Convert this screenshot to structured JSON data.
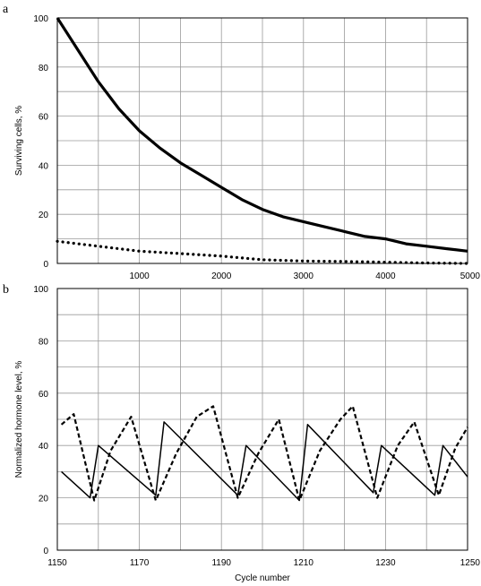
{
  "panel_a_label": "a",
  "panel_b_label": "b",
  "chart_data": [
    {
      "type": "line",
      "xlabel": "",
      "ylabel": "Surviving cells, %",
      "xlim": [
        0,
        5000
      ],
      "ylim": [
        0,
        100
      ],
      "xticks": [
        1000,
        2000,
        3000,
        4000,
        5000
      ],
      "yticks": [
        0,
        20,
        40,
        60,
        80,
        100
      ],
      "grid": true,
      "series": [
        {
          "style": "solid",
          "color": "#000000",
          "x": [
            0,
            250,
            500,
            750,
            1000,
            1250,
            1500,
            1750,
            2000,
            2250,
            2500,
            2750,
            3000,
            3250,
            3500,
            3750,
            4000,
            4250,
            4500,
            4750,
            5000
          ],
          "y": [
            100,
            87,
            74,
            63,
            54,
            47,
            41,
            36,
            31,
            26,
            22,
            19,
            17,
            15,
            13,
            11,
            10,
            8,
            7,
            6,
            5
          ]
        },
        {
          "style": "dotted",
          "color": "#000000",
          "x": [
            0,
            500,
            1000,
            1500,
            2000,
            2500,
            3000,
            3500,
            4000,
            4500,
            5000
          ],
          "y": [
            9,
            7,
            5,
            4,
            3,
            1.5,
            1,
            0.8,
            0.5,
            0.2,
            0
          ]
        }
      ]
    },
    {
      "type": "line",
      "xlabel": "Cycle number",
      "ylabel": "Normalized hormone level, %",
      "xlim": [
        1150,
        1250
      ],
      "ylim": [
        0,
        100
      ],
      "xticks": [
        1150,
        1170,
        1190,
        1210,
        1230,
        1250
      ],
      "yticks": [
        0,
        20,
        40,
        60,
        80,
        100
      ],
      "grid": true,
      "series": [
        {
          "style": "solid",
          "color": "#000000",
          "x": [
            1151,
            1158,
            1160,
            1174,
            1176,
            1194,
            1196,
            1209,
            1211,
            1227,
            1229,
            1242,
            1244,
            1250
          ],
          "y": [
            30,
            20,
            40,
            21,
            49,
            21,
            40,
            19,
            48,
            22,
            40,
            21,
            40,
            28
          ]
        },
        {
          "style": "dashed",
          "color": "#000000",
          "x": [
            1151,
            1154,
            1159,
            1163,
            1168,
            1174,
            1179,
            1184,
            1188,
            1194,
            1199,
            1204,
            1209,
            1214,
            1219,
            1222,
            1228,
            1233,
            1237,
            1243,
            1247,
            1250
          ],
          "y": [
            48,
            52,
            19,
            38,
            51,
            19,
            37,
            51,
            55,
            20,
            37,
            50,
            19,
            38,
            50,
            55,
            20,
            40,
            49,
            21,
            39,
            47
          ]
        }
      ]
    }
  ]
}
